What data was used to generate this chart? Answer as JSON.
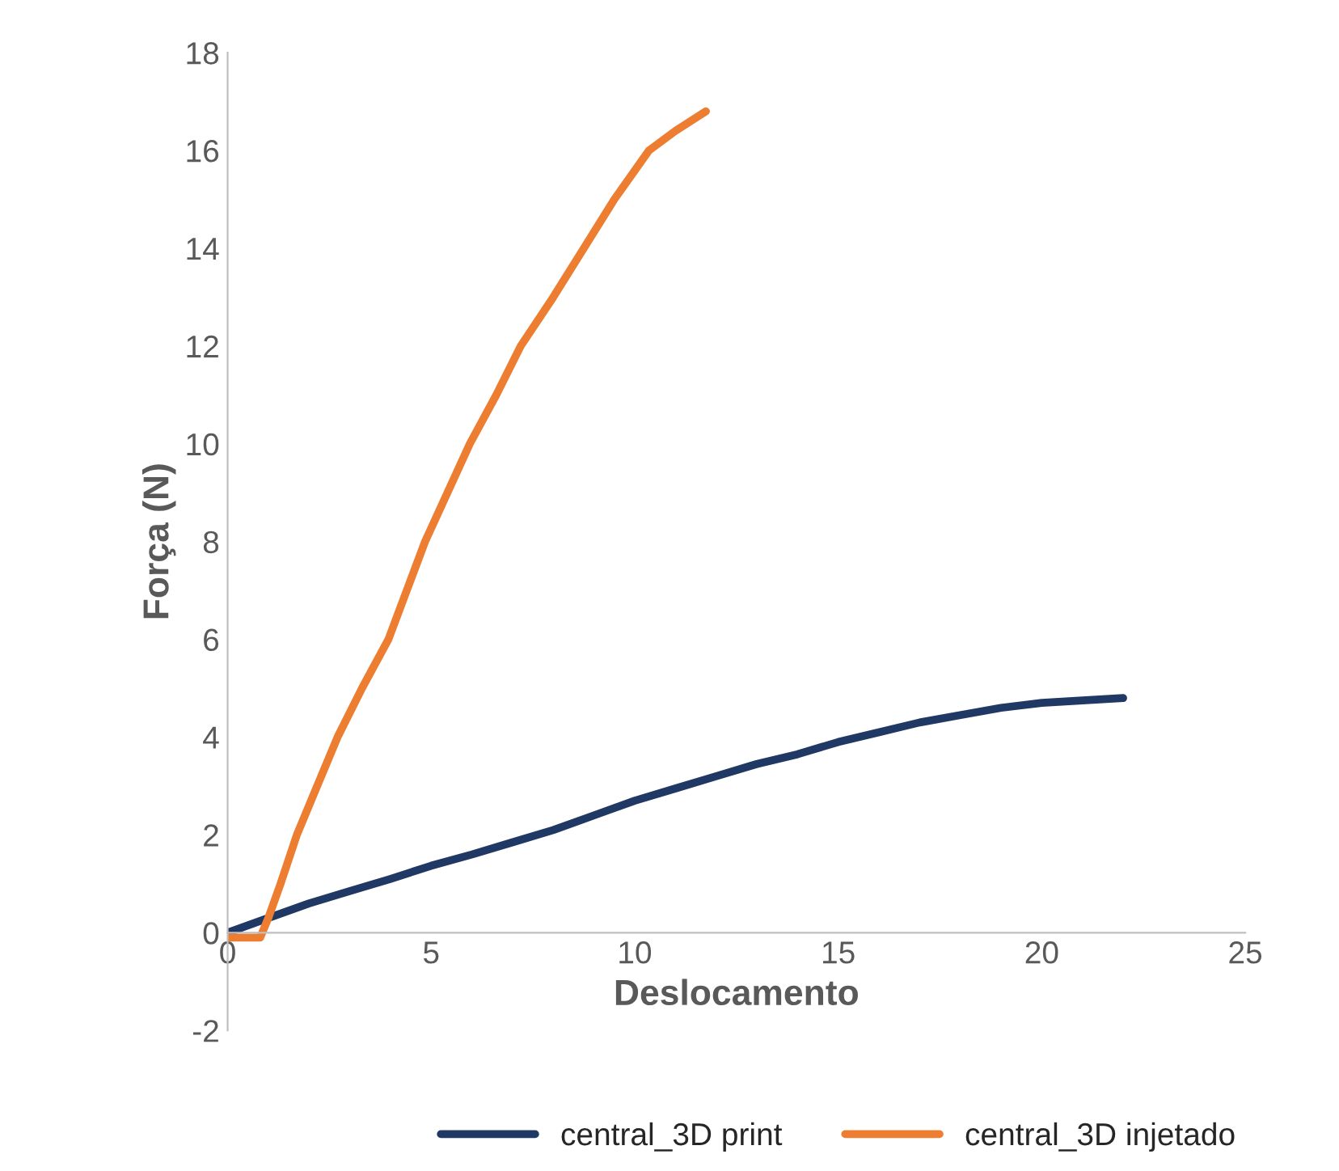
{
  "chart_data": {
    "type": "line",
    "xlabel": "Deslocamento",
    "ylabel": "Força (N)",
    "xlim": [
      0,
      25
    ],
    "xticks": [
      0,
      5,
      10,
      15,
      20,
      25
    ],
    "ylim": [
      -2,
      18
    ],
    "yticks": [
      -2,
      0,
      2,
      4,
      6,
      8,
      10,
      12,
      14,
      16,
      18
    ],
    "grid": false,
    "legend": "bottom",
    "line_style": "solid",
    "marker": "none",
    "series": [
      {
        "name": "central_3D print",
        "color": "#203864",
        "x": [
          0,
          1,
          2,
          3,
          4,
          5,
          6,
          7,
          8,
          9,
          10,
          11,
          12,
          13,
          14,
          15,
          16,
          17,
          18,
          19,
          20,
          21,
          22
        ],
        "values": [
          0,
          0.3,
          0.6,
          0.85,
          1.1,
          1.37,
          1.6,
          1.85,
          2.1,
          2.4,
          2.7,
          2.95,
          3.2,
          3.45,
          3.65,
          3.9,
          4.1,
          4.3,
          4.45,
          4.6,
          4.7,
          4.75,
          4.8
        ]
      },
      {
        "name": "central_3D injetado",
        "color": "#ed7d31",
        "x": [
          0,
          0.4,
          0.8,
          1.0,
          1.3,
          1.7,
          2.2,
          2.7,
          3.3,
          3.95,
          4.4,
          4.85,
          5.4,
          5.95,
          6.6,
          7.2,
          8.0,
          8.75,
          9.5,
          10.35,
          11.0,
          11.75
        ],
        "values": [
          -0.1,
          -0.1,
          -0.1,
          0.3,
          1.0,
          2.0,
          3.0,
          4.0,
          5.0,
          6.0,
          7.0,
          8.0,
          9.0,
          10.0,
          11.0,
          12.0,
          13.0,
          14.0,
          15.0,
          16.0,
          16.4,
          16.8
        ]
      }
    ]
  }
}
